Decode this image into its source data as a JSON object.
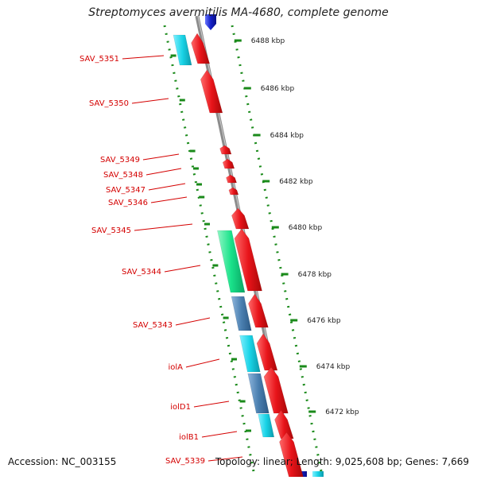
{
  "title": "Streptomyces avermitilis MA-4680, complete genome",
  "footer": {
    "accession": "Accession: NC_003155",
    "topology": "Topology: linear; Length: 9,025,608 bp; Genes: 7,669"
  },
  "scale": {
    "labels": [
      "6488 kbp",
      "6486 kbp",
      "6484 kbp",
      "6482 kbp",
      "6480 kbp",
      "6478 kbp",
      "6476 kbp",
      "6474 kbp",
      "6472 kbp"
    ]
  },
  "gene_labels": [
    "SAV_5351",
    "SAV_5350",
    "SAV_5349",
    "SAV_5348",
    "SAV_5347",
    "SAV_5346",
    "SAV_5345",
    "SAV_5344",
    "SAV_5343",
    "iolA",
    "iolD1",
    "iolB1",
    "SAV_5339"
  ],
  "colors": {
    "gene": "#e8141a",
    "label": "#d40000",
    "scale_green": "#1a8a1a",
    "cds_cyan": "#19d3e6",
    "cds_green": "#19e28a",
    "cds_steel": "#4a7fb0",
    "reverse_blue": "#1420c8",
    "backbone": "#8c8c8c"
  }
}
